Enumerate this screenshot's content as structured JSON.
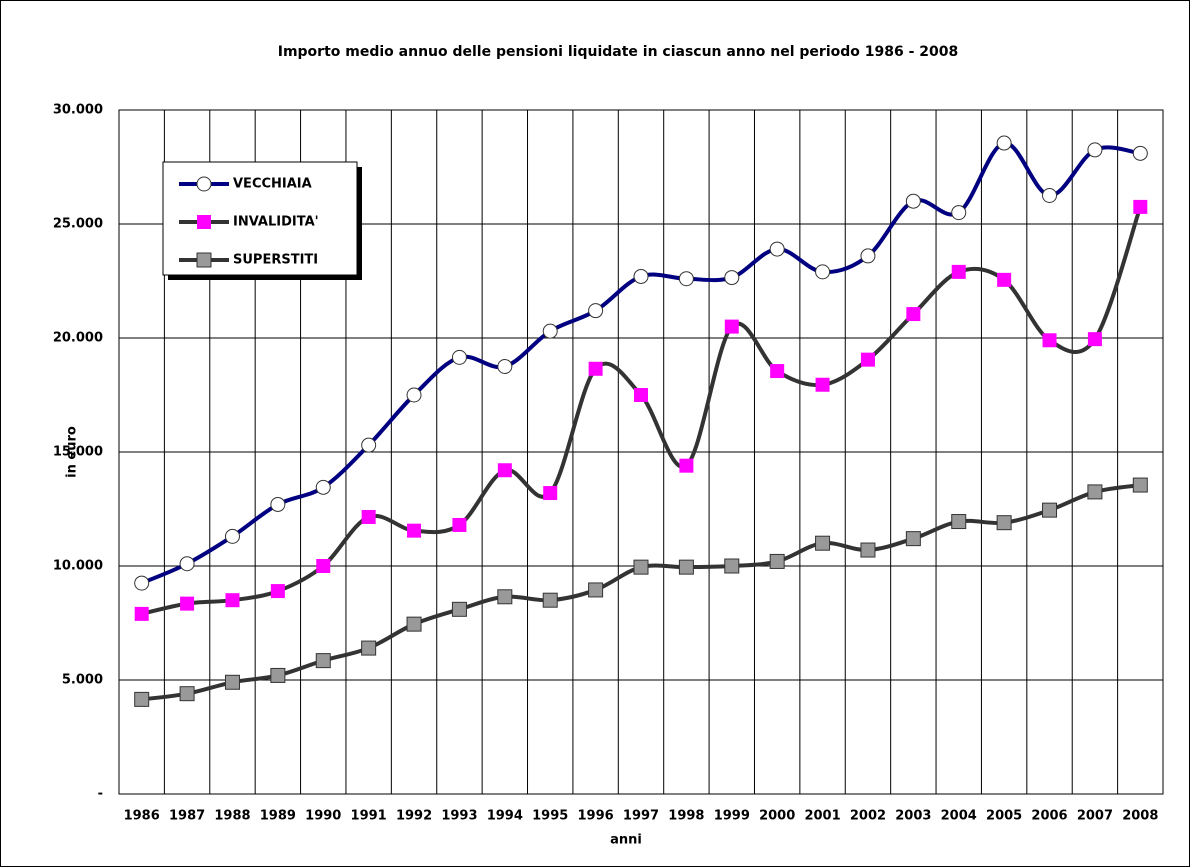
{
  "chart_data": {
    "type": "line",
    "title": "Importo medio annuo delle pensioni liquidate in ciascun anno nel periodo 1986 - 2008",
    "x_label": "anni",
    "y_label": "in euro",
    "categories": [
      "1986",
      "1987",
      "1988",
      "1989",
      "1990",
      "1991",
      "1992",
      "1993",
      "1994",
      "1995",
      "1996",
      "1997",
      "1998",
      "1999",
      "2000",
      "2001",
      "2002",
      "2003",
      "2004",
      "2005",
      "2006",
      "2007",
      "2008"
    ],
    "series": [
      {
        "name": "VECCHIAIA",
        "color": "#000080",
        "marker": "circle",
        "marker_color": "#ffffff",
        "values": [
          9250,
          10100,
          11300,
          12700,
          13450,
          15300,
          17500,
          19150,
          18750,
          20300,
          21200,
          22700,
          22600,
          22650,
          23900,
          22900,
          23600,
          26000,
          25500,
          28550,
          26250,
          28250,
          28100
        ]
      },
      {
        "name": "INVALIDITA'",
        "color": "#333333",
        "marker": "square",
        "marker_color": "#ff00ff",
        "values": [
          7900,
          8350,
          8500,
          8900,
          10000,
          12150,
          11550,
          11800,
          14200,
          13200,
          18650,
          17500,
          14400,
          20500,
          18550,
          17950,
          19050,
          21050,
          22900,
          22550,
          19900,
          19950,
          25750
        ]
      },
      {
        "name": "SUPERSTITI",
        "color": "#333333",
        "marker": "square",
        "marker_color": "#999999",
        "values": [
          4150,
          4400,
          4900,
          5200,
          5850,
          6400,
          7450,
          8100,
          8650,
          8500,
          8950,
          9950,
          9950,
          10000,
          10200,
          11000,
          10700,
          11200,
          11950,
          11900,
          12450,
          13250,
          13550
        ]
      }
    ],
    "ylim": [
      0,
      30000
    ],
    "yticks": [
      {
        "value": 0,
        "label": "-"
      },
      {
        "value": 5000,
        "label": "5.000"
      },
      {
        "value": 10000,
        "label": "10.000"
      },
      {
        "value": 15000,
        "label": "15.000"
      },
      {
        "value": 20000,
        "label": "20.000"
      },
      {
        "value": 25000,
        "label": "25.000"
      },
      {
        "value": 30000,
        "label": "30.000"
      }
    ],
    "grid": true,
    "smooth": true,
    "legend": "upper left"
  }
}
